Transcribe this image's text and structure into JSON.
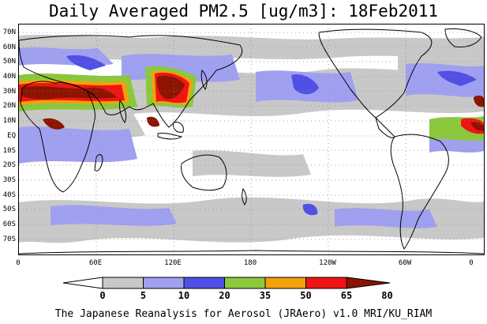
{
  "title": "Daily Averaged PM2.5 [ug/m3]: 18Feb2011",
  "credit": "The Japanese Reanalysis for Aerosol (JRAero) v1.0 MRI/KU_RIAM",
  "lat_labels": [
    "70N",
    "60N",
    "50N",
    "40N",
    "30N",
    "20N",
    "10N",
    "EQ",
    "10S",
    "20S",
    "30S",
    "40S",
    "50S",
    "60S",
    "70S"
  ],
  "lon_labels": [
    "0",
    "60E",
    "120E",
    "180",
    "120W",
    "60W",
    "0"
  ],
  "colorbar": {
    "levels": [
      "0",
      "5",
      "10",
      "20",
      "35",
      "50",
      "65",
      "80"
    ],
    "colors": [
      "#ffffff",
      "#c8c8c8",
      "#a0a0f0",
      "#5050e6",
      "#8cc83c",
      "#f5a00a",
      "#f01414",
      "#8c1400"
    ]
  },
  "concentration_regions": [
    {
      "region": "West/North Africa and Arabia",
      "level": "80"
    },
    {
      "region": "Northern India",
      "level": "80"
    },
    {
      "region": "Eastern China",
      "level": "80"
    },
    {
      "region": "Southeast Asia",
      "level": "80"
    },
    {
      "region": "West Africa (Gulf of Guinea)",
      "level": "65"
    }
  ]
}
